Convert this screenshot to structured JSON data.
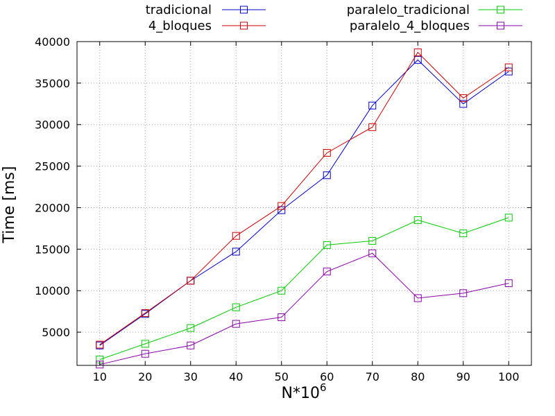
{
  "chart_data": {
    "type": "line",
    "xlabel": "N*10",
    "xlabel_superscript": "6",
    "ylabel": "Time [ms]",
    "xlim": [
      5,
      105
    ],
    "ylim": [
      1000,
      40000
    ],
    "x": [
      10,
      20,
      30,
      40,
      50,
      60,
      70,
      80,
      90,
      100
    ],
    "x_ticks": [
      10,
      20,
      30,
      40,
      50,
      60,
      70,
      80,
      90,
      100
    ],
    "y_ticks": [
      5000,
      10000,
      15000,
      20000,
      25000,
      30000,
      35000,
      40000
    ],
    "grid": true,
    "legend_position": "top",
    "marker": "open-square",
    "series": [
      {
        "name": "tradicional",
        "color": "#0000cc",
        "values": [
          3400,
          7200,
          11200,
          14700,
          19700,
          23900,
          32300,
          37800,
          32500,
          36400
        ]
      },
      {
        "name": "4_bloques",
        "color": "#cc0000",
        "values": [
          3500,
          7300,
          11200,
          16600,
          20200,
          26600,
          29700,
          38700,
          33200,
          36900
        ]
      },
      {
        "name": "paralelo_tradicional",
        "color": "#00cc00",
        "values": [
          1700,
          3600,
          5500,
          8000,
          10000,
          15500,
          16000,
          18500,
          16900,
          18800
        ]
      },
      {
        "name": "paralelo_4_bloques",
        "color": "#8800aa",
        "values": [
          1100,
          2400,
          3400,
          6000,
          6800,
          12300,
          14500,
          9100,
          9700,
          10900
        ]
      }
    ]
  }
}
